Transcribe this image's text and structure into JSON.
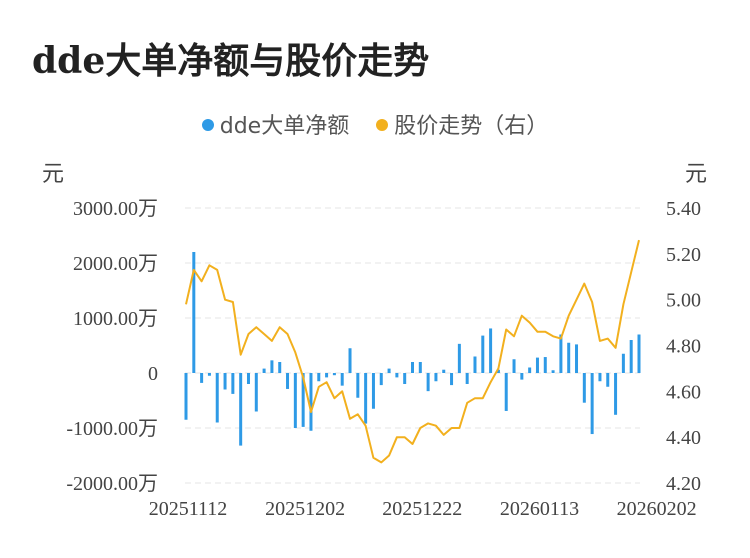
{
  "page": {
    "title": "dde大单净额与股价走势"
  },
  "chart_data": {
    "type": "bar+line",
    "title": "dde大单净额与股价走势",
    "left_unit": "元",
    "right_unit": "元",
    "legend": [
      {
        "name": "dde大单净额",
        "color": "#2e9ae6"
      },
      {
        "name": "股价走势（右）",
        "color": "#f2b01e"
      }
    ],
    "left_axis": {
      "ylim": [
        -2000,
        3000
      ],
      "ticks": [
        3000,
        2000,
        1000,
        0,
        -1000,
        -2000
      ],
      "tick_labels": [
        "3000.00万",
        "2000.00万",
        "1000.00万",
        "0",
        "-1000.00万",
        "-2000.00万"
      ]
    },
    "right_axis": {
      "ylim": [
        4.2,
        5.4
      ],
      "ticks": [
        5.4,
        5.2,
        5.0,
        4.8,
        4.6,
        4.4,
        4.2
      ],
      "tick_labels": [
        "5.40",
        "5.20",
        "5.00",
        "4.80",
        "4.60",
        "4.40",
        "4.20"
      ]
    },
    "x_tick_labels": [
      "20251112",
      "20251202",
      "20251222",
      "20260113",
      "20260202"
    ],
    "x_tick_index": [
      0,
      15,
      30,
      45,
      60
    ],
    "series": [
      {
        "name": "dde大单净额",
        "type": "bar",
        "unit": "万",
        "values": [
          -850,
          2200,
          -180,
          -50,
          -900,
          -300,
          -380,
          -1320,
          -200,
          -700,
          80,
          230,
          200,
          -290,
          -1000,
          -980,
          -1050,
          -150,
          -80,
          -40,
          -230,
          450,
          -450,
          -920,
          -650,
          -220,
          80,
          -80,
          -200,
          200,
          200,
          -330,
          -150,
          60,
          -220,
          530,
          -200,
          300,
          680,
          810,
          60,
          -690,
          250,
          -120,
          100,
          280,
          290,
          50,
          700,
          550,
          520,
          -540,
          -1110,
          -150,
          -250,
          -760,
          350,
          600,
          700
        ]
      },
      {
        "name": "股价走势（右）",
        "type": "line",
        "values": [
          4.98,
          5.13,
          5.08,
          5.15,
          5.13,
          5.0,
          4.99,
          4.76,
          4.85,
          4.88,
          4.85,
          4.82,
          4.88,
          4.85,
          4.77,
          4.66,
          4.51,
          4.62,
          4.64,
          4.57,
          4.6,
          4.48,
          4.5,
          4.45,
          4.31,
          4.29,
          4.32,
          4.4,
          4.4,
          4.37,
          4.44,
          4.46,
          4.45,
          4.41,
          4.44,
          4.44,
          4.55,
          4.57,
          4.57,
          4.64,
          4.7,
          4.87,
          4.84,
          4.93,
          4.9,
          4.86,
          4.86,
          4.84,
          4.83,
          4.93,
          5.0,
          5.07,
          4.99,
          4.82,
          4.83,
          4.79,
          4.98,
          5.12,
          5.26
        ]
      }
    ]
  }
}
